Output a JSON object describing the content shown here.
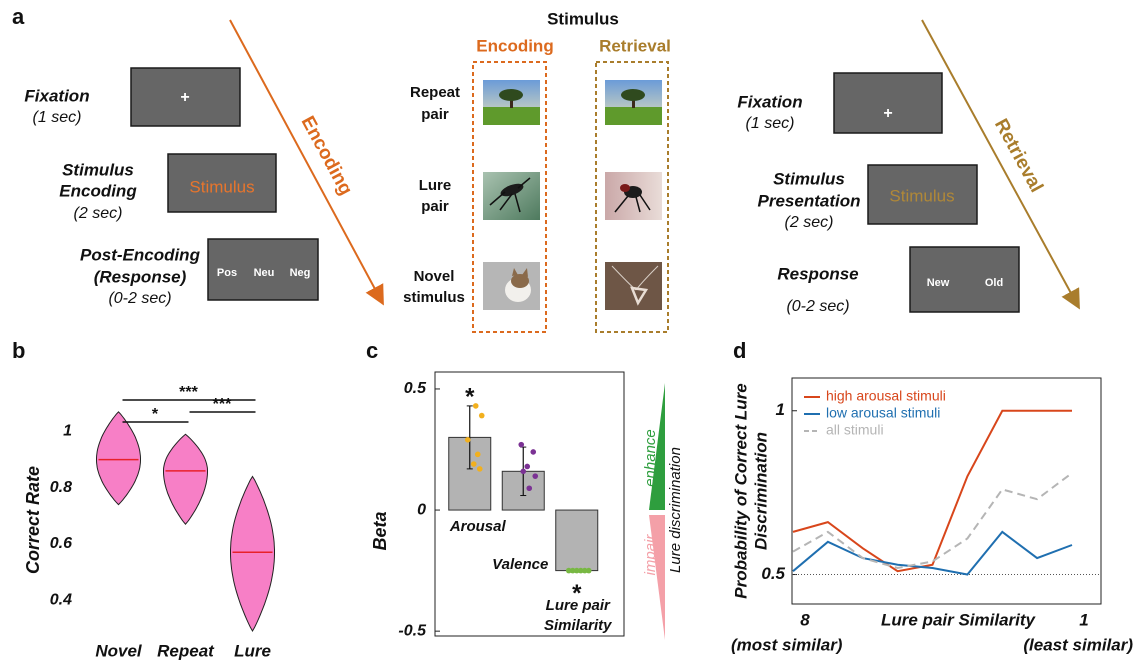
{
  "diagram": {
    "label": "a",
    "encoding_phase": {
      "arrow_label": "Encoding",
      "steps": [
        {
          "name": [
            "Fixation"
          ],
          "duration": "(1 sec)",
          "screen": [
            "+"
          ]
        },
        {
          "name": [
            "Stimulus",
            "Encoding"
          ],
          "duration": "(2 sec)",
          "screen": [
            "Stimulus"
          ]
        },
        {
          "name": [
            "Post-Encoding",
            "(Response)"
          ],
          "duration": "(0-2 sec)",
          "screen": [
            "Pos",
            "Neu",
            "Neg"
          ]
        }
      ]
    },
    "stimulus_panel": {
      "title": "Stimulus",
      "columns": [
        "Encoding",
        "Retrieval"
      ],
      "rows": [
        [
          "Repeat",
          "pair"
        ],
        [
          "Lure",
          "pair"
        ],
        [
          "Novel",
          "stimulus"
        ]
      ]
    },
    "retrieval_phase": {
      "arrow_label": "Retrieval",
      "steps": [
        {
          "name": [
            "Fixation"
          ],
          "duration": "(1 sec)",
          "screen": [
            "+"
          ]
        },
        {
          "name": [
            "Stimulus",
            "Presentation"
          ],
          "duration": "(2 sec)",
          "screen": [
            "Stimulus"
          ]
        },
        {
          "name": [
            "Response"
          ],
          "duration": "(0-2 sec)",
          "screen": [
            "New",
            "Old"
          ]
        }
      ]
    }
  },
  "chart_data": [
    {
      "type": "violin",
      "panel_label": "b",
      "ylabel": "Correct Rate",
      "categories": [
        "Novel",
        "Repeat",
        "Lure"
      ],
      "color": "#f77fc6",
      "median_color": "#e8202a",
      "medians": [
        0.9,
        0.86,
        0.57
      ],
      "mins": [
        0.74,
        0.67,
        0.29
      ],
      "maxs": [
        1.07,
        0.99,
        0.84
      ],
      "ylim": [
        0.24,
        1.13
      ],
      "yticks": [
        0.4,
        0.6,
        0.8,
        1
      ],
      "significance": [
        {
          "label": "***",
          "between": [
            "Novel",
            "Lure"
          ]
        },
        {
          "label": "*",
          "between": [
            "Novel",
            "Repeat"
          ]
        },
        {
          "label": "***",
          "between": [
            "Repeat",
            "Lure"
          ]
        }
      ]
    },
    {
      "type": "bar",
      "panel_label": "c",
      "ylabel": "Beta",
      "categories": [
        [
          "Arousal"
        ],
        [
          "Valence"
        ],
        [
          "Lure pair",
          "Similarity"
        ]
      ],
      "values": [
        0.3,
        0.16,
        -0.25
      ],
      "errors": [
        0.13,
        0.1,
        null
      ],
      "color": "#b3b3b3",
      "points": [
        [
          0.43,
          0.39,
          0.29,
          0.23,
          0.19,
          0.17
        ],
        [
          0.27,
          0.24,
          0.18,
          0.16,
          0.14,
          0.09
        ],
        [
          -0.25,
          -0.25,
          -0.25,
          -0.25,
          -0.25,
          -0.25
        ]
      ],
      "point_colors": [
        "#f2b01e",
        "#7b3294",
        "#78b843"
      ],
      "significance": [
        "*",
        null,
        "*"
      ],
      "side_arrow": {
        "up": "enhance",
        "down": "impair",
        "label": "Lure discrimination",
        "up_color": "#2e9e3e",
        "down_color": "#f4a0a8"
      },
      "ylim": [
        -0.52,
        0.57
      ],
      "yticks": [
        0.5,
        0,
        -0.5
      ]
    },
    {
      "type": "line",
      "panel_label": "d",
      "ylabel": [
        "Probability of Correct Lure",
        "Discrimination"
      ],
      "xlabel": "Lure pair Similarity",
      "x_end_labels": [
        "(most similar)",
        "(least similar)"
      ],
      "categories": [
        "8",
        null,
        null,
        null,
        null,
        null,
        null,
        null,
        "1"
      ],
      "ylim": [
        0.41,
        1.1
      ],
      "yticks": [
        0.5,
        1
      ],
      "reference_line": 0.5,
      "legend": "upper left",
      "series": [
        {
          "name": "high arousal stimuli",
          "color": "#d8461b",
          "style": "solid",
          "values": [
            0.63,
            0.66,
            0.58,
            0.51,
            0.53,
            0.8,
            1.0,
            1.0,
            1.0
          ]
        },
        {
          "name": "low arousal stimuli",
          "color": "#1f6fb0",
          "style": "solid",
          "values": [
            0.51,
            0.6,
            0.55,
            0.53,
            0.52,
            0.5,
            0.63,
            0.55,
            0.59
          ]
        },
        {
          "name": "all stimuli",
          "color": "#b5b5b5",
          "style": "dashed",
          "values": [
            0.57,
            0.63,
            0.55,
            0.52,
            0.54,
            0.61,
            0.76,
            0.73,
            0.81
          ]
        }
      ]
    }
  ]
}
